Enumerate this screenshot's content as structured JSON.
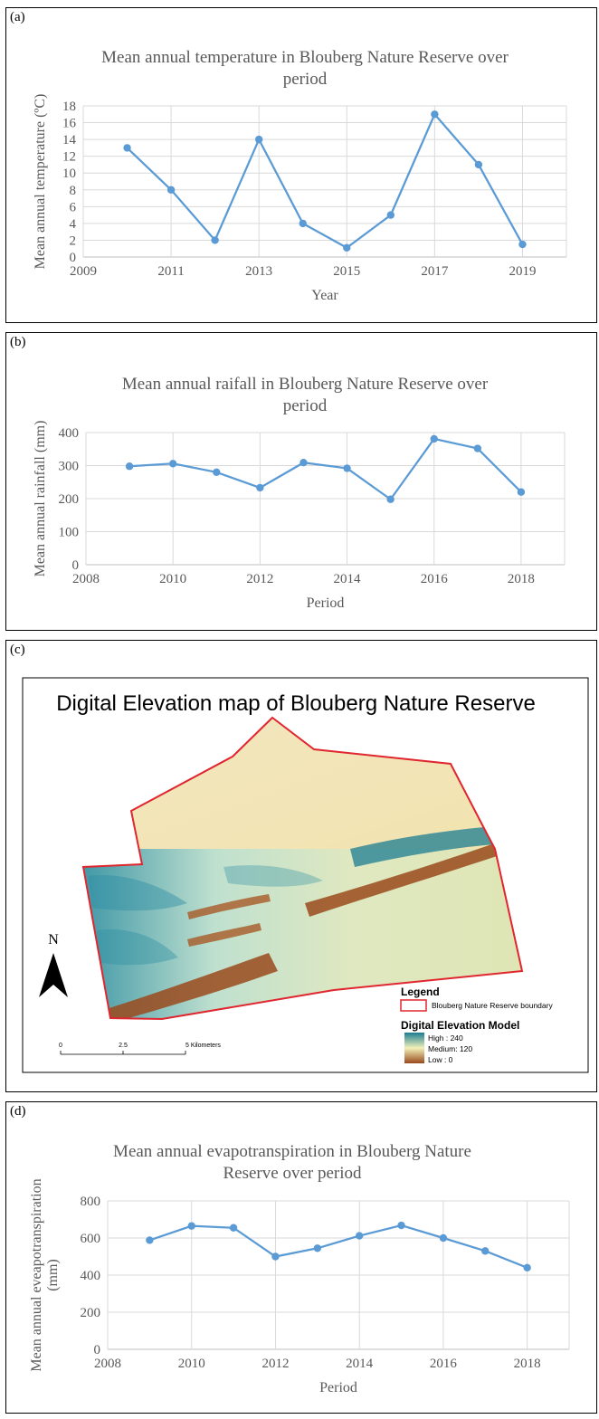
{
  "panels": {
    "a": "(a)",
    "b": "(b)",
    "c": "(c)",
    "d": "(d)"
  },
  "chart_data": [
    {
      "type": "scatter",
      "title_lines": [
        "Mean annual temperature in Blouberg Nature Reserve over",
        "period"
      ],
      "xlabel": "Year",
      "ylabel": "Mean annual temperature (ºC)",
      "xlim": [
        2009,
        2020
      ],
      "ylim": [
        0,
        18
      ],
      "x_ticks": [
        2009,
        2011,
        2013,
        2015,
        2017,
        2019
      ],
      "y_ticks": [
        0,
        2,
        4,
        6,
        8,
        10,
        12,
        14,
        16,
        18
      ],
      "series": [
        {
          "x": [
            2010,
            2011,
            2012,
            2013,
            2014,
            2015,
            2016,
            2017,
            2018,
            2019
          ],
          "y": [
            13,
            8,
            2,
            14,
            4,
            1.1,
            5,
            17,
            11,
            1.5
          ]
        }
      ],
      "grid": true,
      "color": "#5b9bd5"
    },
    {
      "type": "scatter",
      "title_lines": [
        "Mean annual raifall in Blouberg Nature Reserve over",
        "period"
      ],
      "xlabel": "Period",
      "ylabel": "Mean annual rainfall (mm)",
      "xlim": [
        2008,
        2019
      ],
      "ylim": [
        0,
        400
      ],
      "x_ticks": [
        2008,
        2010,
        2012,
        2014,
        2016,
        2018
      ],
      "y_ticks": [
        0,
        100,
        200,
        300,
        400
      ],
      "series": [
        {
          "x": [
            2009,
            2010,
            2011,
            2012,
            2013,
            2014,
            2015,
            2016,
            2017,
            2018
          ],
          "y": [
            298,
            306,
            280,
            233,
            309,
            292,
            198,
            381,
            352,
            220
          ]
        }
      ],
      "grid": true,
      "color": "#5b9bd5"
    },
    {
      "type": "scatter",
      "title_lines": [
        "Mean annual evapotranspiration  in Blouberg Nature",
        "Reserve over period"
      ],
      "xlabel": "Period",
      "ylabel_lines": [
        "Mean annual eveapotranspiration",
        "(mm)"
      ],
      "xlim": [
        2008,
        2019
      ],
      "ylim": [
        0,
        800
      ],
      "x_ticks": [
        2008,
        2010,
        2012,
        2014,
        2016,
        2018
      ],
      "y_ticks": [
        0,
        200,
        400,
        600,
        800
      ],
      "series": [
        {
          "x": [
            2009,
            2010,
            2011,
            2012,
            2013,
            2014,
            2015,
            2016,
            2017,
            2018
          ],
          "y": [
            588,
            665,
            655,
            500,
            545,
            612,
            668,
            600,
            530,
            440
          ]
        }
      ],
      "grid": true,
      "color": "#5b9bd5"
    }
  ],
  "map": {
    "title": "Digital Elevation map of Blouberg Nature Reserve",
    "north": "N",
    "legend_title": "Legend",
    "boundary_label": "Blouberg Nature Reserve boundary",
    "dem_title": "Digital Elevation Model",
    "dem_high": "High : 240",
    "dem_medium": "Medium: 120",
    "dem_low": "Low : 0",
    "scale_labels": [
      "0",
      "2.5",
      "5 Kilometers"
    ],
    "colors": {
      "high": "#1b7d93",
      "medium": "#f2f0b8",
      "low": "#9a4a1c",
      "boundary": "#e0262e"
    }
  }
}
